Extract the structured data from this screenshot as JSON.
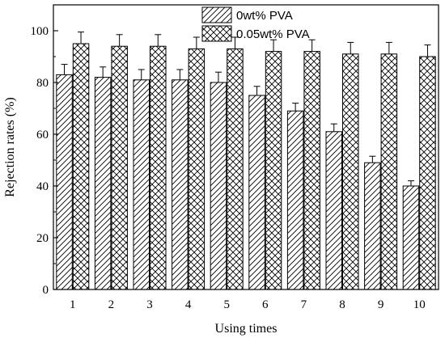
{
  "chart_data": {
    "type": "bar",
    "title": "",
    "xlabel": "Using times",
    "ylabel": "Rejection rates (%)",
    "categories": [
      "1",
      "2",
      "3",
      "4",
      "5",
      "6",
      "7",
      "8",
      "9",
      "10"
    ],
    "ylim": [
      0,
      110
    ],
    "yticks": [
      "0",
      "20",
      "40",
      "60",
      "80",
      "100"
    ],
    "grid": false,
    "legend_position": "top-center",
    "series": [
      {
        "name": "0wt% PVA",
        "pattern": "diagonal-hatch",
        "values": [
          83,
          82,
          81,
          81,
          80,
          75,
          69,
          61,
          49,
          40
        ],
        "error": [
          4,
          4,
          4,
          4,
          4,
          3.5,
          3,
          3,
          2.5,
          2
        ]
      },
      {
        "name": "0.05wt% PVA",
        "pattern": "cross-hatch",
        "values": [
          95,
          94,
          94,
          93,
          93,
          92,
          92,
          91,
          91,
          90
        ],
        "error": [
          4.5,
          4.5,
          4.5,
          4.5,
          4.5,
          4.5,
          4.5,
          4.5,
          4.5,
          4.5
        ]
      }
    ]
  }
}
